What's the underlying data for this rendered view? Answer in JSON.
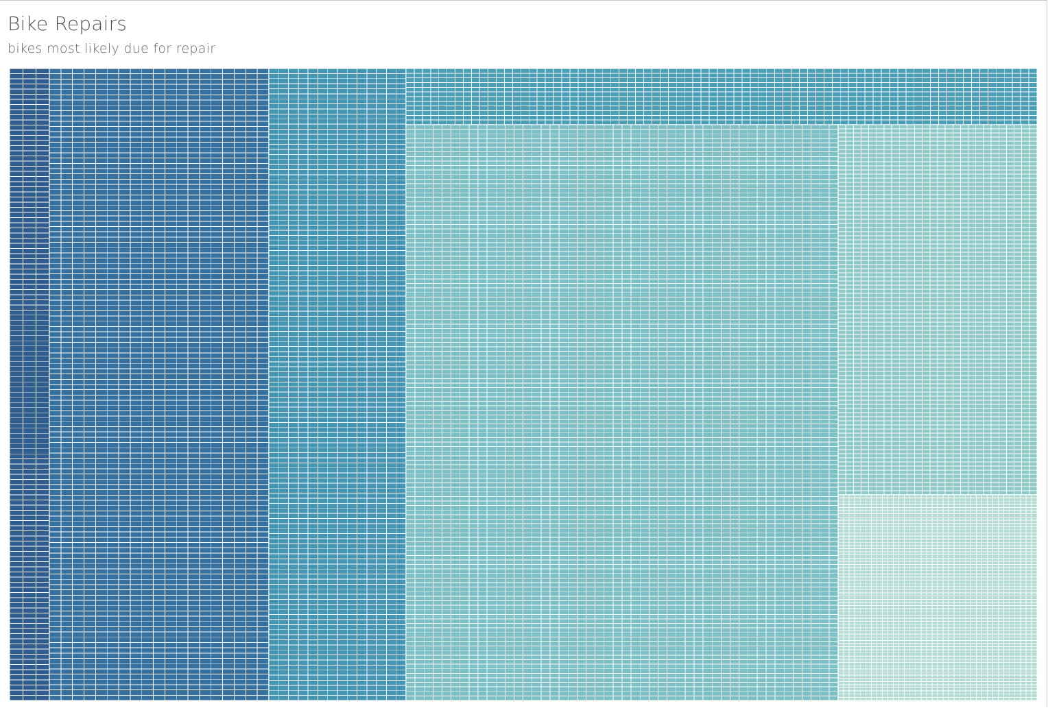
{
  "header": {
    "title": "Bike Repairs",
    "subtitle": "bikes most likely due for repair"
  },
  "chart_data": {
    "type": "treemap",
    "title": "Bike Repairs",
    "subtitle": "bikes most likely due for repair",
    "color_scale": [
      "#2e5b8f",
      "#3b8fb3",
      "#5fb0bd",
      "#86c6c4",
      "#bde3d6"
    ],
    "groups": [
      {
        "rank": 1,
        "share": 0.039,
        "tile_count": 270,
        "tile_size": "largest",
        "color": "#2f5d8e"
      },
      {
        "rank": 2,
        "share": 0.213,
        "tile_count": 1400,
        "tile_size": "large",
        "color": "#35709e"
      },
      {
        "rank": 3,
        "share": 0.133,
        "tile_count": 1150,
        "tile_size": "large",
        "color": "#4496b2"
      },
      {
        "rank": 4,
        "share": 0.108,
        "tile_count": 1100,
        "tile_size": "medium",
        "color": "#4a9fb6"
      },
      {
        "rank": 5,
        "share": 0.276,
        "tile_count": 3000,
        "tile_size": "medium",
        "color": "#7cbfc4"
      },
      {
        "rank": 6,
        "share": 0.139,
        "tile_count": 1500,
        "tile_size": "small",
        "color": "#8fcac8"
      },
      {
        "rank": 7,
        "share": 0.092,
        "tile_count": 2200,
        "tile_size": "smallest",
        "color": "#b3ddd3"
      }
    ]
  }
}
